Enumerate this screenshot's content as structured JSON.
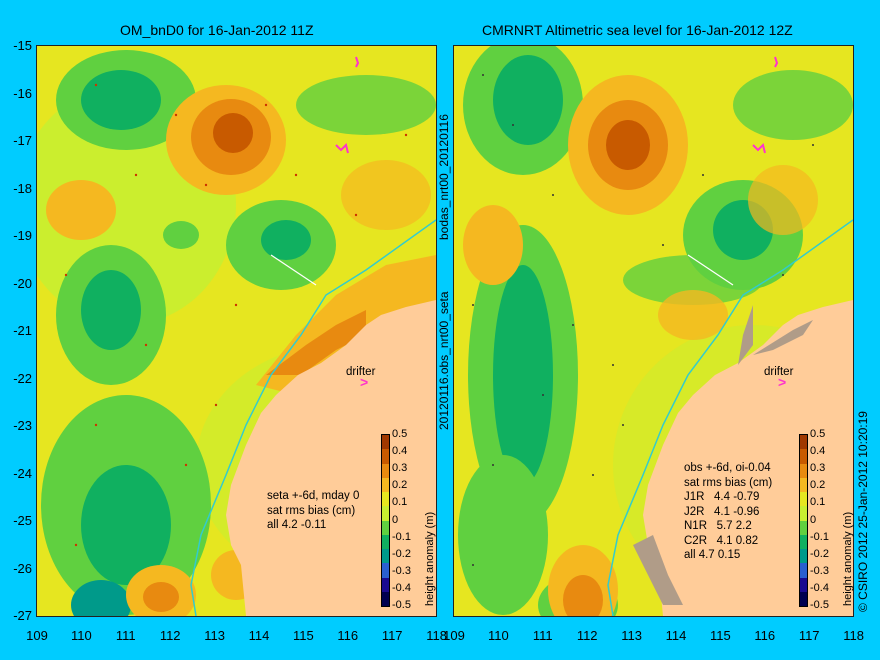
{
  "titles": {
    "left": "OM_bnD0 for 16-Jan-2012 11Z",
    "right": "CMRNRT Altimetric sea level  for 16-Jan-2012 12Z"
  },
  "axes": {
    "y_ticks": [
      "-15",
      "-16",
      "-17",
      "-18",
      "-19",
      "-20",
      "-21",
      "-22",
      "-23",
      "-24",
      "-25",
      "-26",
      "-27"
    ],
    "x_ticks": [
      "109",
      "110",
      "111",
      "112",
      "113",
      "114",
      "115",
      "116",
      "117",
      "118"
    ]
  },
  "side_labels": {
    "bodas": "bodas_nrt00_20120116",
    "obs": "20120116.obs_nrt00_seta",
    "copyright": "© CSIRO 2012  25-Jan-2012 10:20:19"
  },
  "colorbar": {
    "title": "height anomaly (m)",
    "ticks": [
      "0.5",
      "0.4",
      "0.3",
      "0.2",
      "0.1",
      "0",
      "-0.1",
      "-0.2",
      "-0.3",
      "-0.4",
      "-0.5"
    ],
    "colors": [
      "#a03800",
      "#c85a00",
      "#e88a10",
      "#f5b820",
      "#e6e620",
      "#c8ee30",
      "#60d040",
      "#10b060",
      "#009a8a",
      "#2a5fd0",
      "#1a0a90",
      "#000050"
    ]
  },
  "annotations": {
    "drifter_label": "drifter",
    "left_stats": [
      "seta +-6d, mday 0",
      "sat rms bias (cm)",
      "all 4.2 -0.11"
    ],
    "right_stats": [
      "obs +-6d, oi-0.04",
      "sat rms bias (cm)",
      "J1R   4.4 -0.79",
      "J2R   4.1 -0.96",
      "N1R   5.7 2.2",
      "C2R   4.1 0.82",
      "all 4.7 0.15"
    ]
  },
  "map_colors": {
    "land": "#ffcc99",
    "coast_shade": "#b09c88",
    "isobath": "#33cccc"
  }
}
